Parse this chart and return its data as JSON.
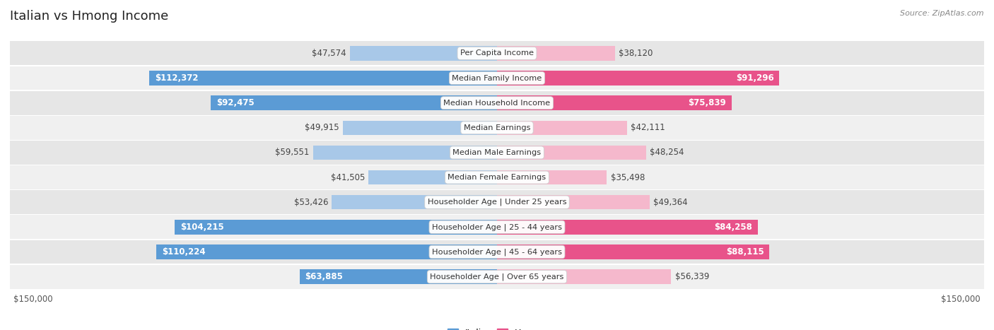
{
  "title": "Italian vs Hmong Income",
  "source": "Source: ZipAtlas.com",
  "categories": [
    "Per Capita Income",
    "Median Family Income",
    "Median Household Income",
    "Median Earnings",
    "Median Male Earnings",
    "Median Female Earnings",
    "Householder Age | Under 25 years",
    "Householder Age | 25 - 44 years",
    "Householder Age | 45 - 64 years",
    "Householder Age | Over 65 years"
  ],
  "italian_values": [
    47574,
    112372,
    92475,
    49915,
    59551,
    41505,
    53426,
    104215,
    110224,
    63885
  ],
  "hmong_values": [
    38120,
    91296,
    75839,
    42111,
    48254,
    35498,
    49364,
    84258,
    88115,
    56339
  ],
  "italian_labels": [
    "$47,574",
    "$112,372",
    "$92,475",
    "$49,915",
    "$59,551",
    "$41,505",
    "$53,426",
    "$104,215",
    "$110,224",
    "$63,885"
  ],
  "hmong_labels": [
    "$38,120",
    "$91,296",
    "$75,839",
    "$42,111",
    "$48,254",
    "$35,498",
    "$49,364",
    "$84,258",
    "$88,115",
    "$56,339"
  ],
  "italian_color_light": "#a8c8e8",
  "italian_color_dark": "#5b9bd5",
  "hmong_color_light": "#f5b8cc",
  "hmong_color_dark": "#e8538a",
  "max_value": 150000,
  "background_color": "#ffffff",
  "row_bg_even": "#f0f0f0",
  "row_bg_odd": "#e6e6e6",
  "title_fontsize": 13,
  "label_fontsize": 8.5,
  "axis_label_fontsize": 8.5,
  "legend_fontsize": 9,
  "source_fontsize": 8,
  "italian_threshold": 60000,
  "hmong_threshold": 60000
}
